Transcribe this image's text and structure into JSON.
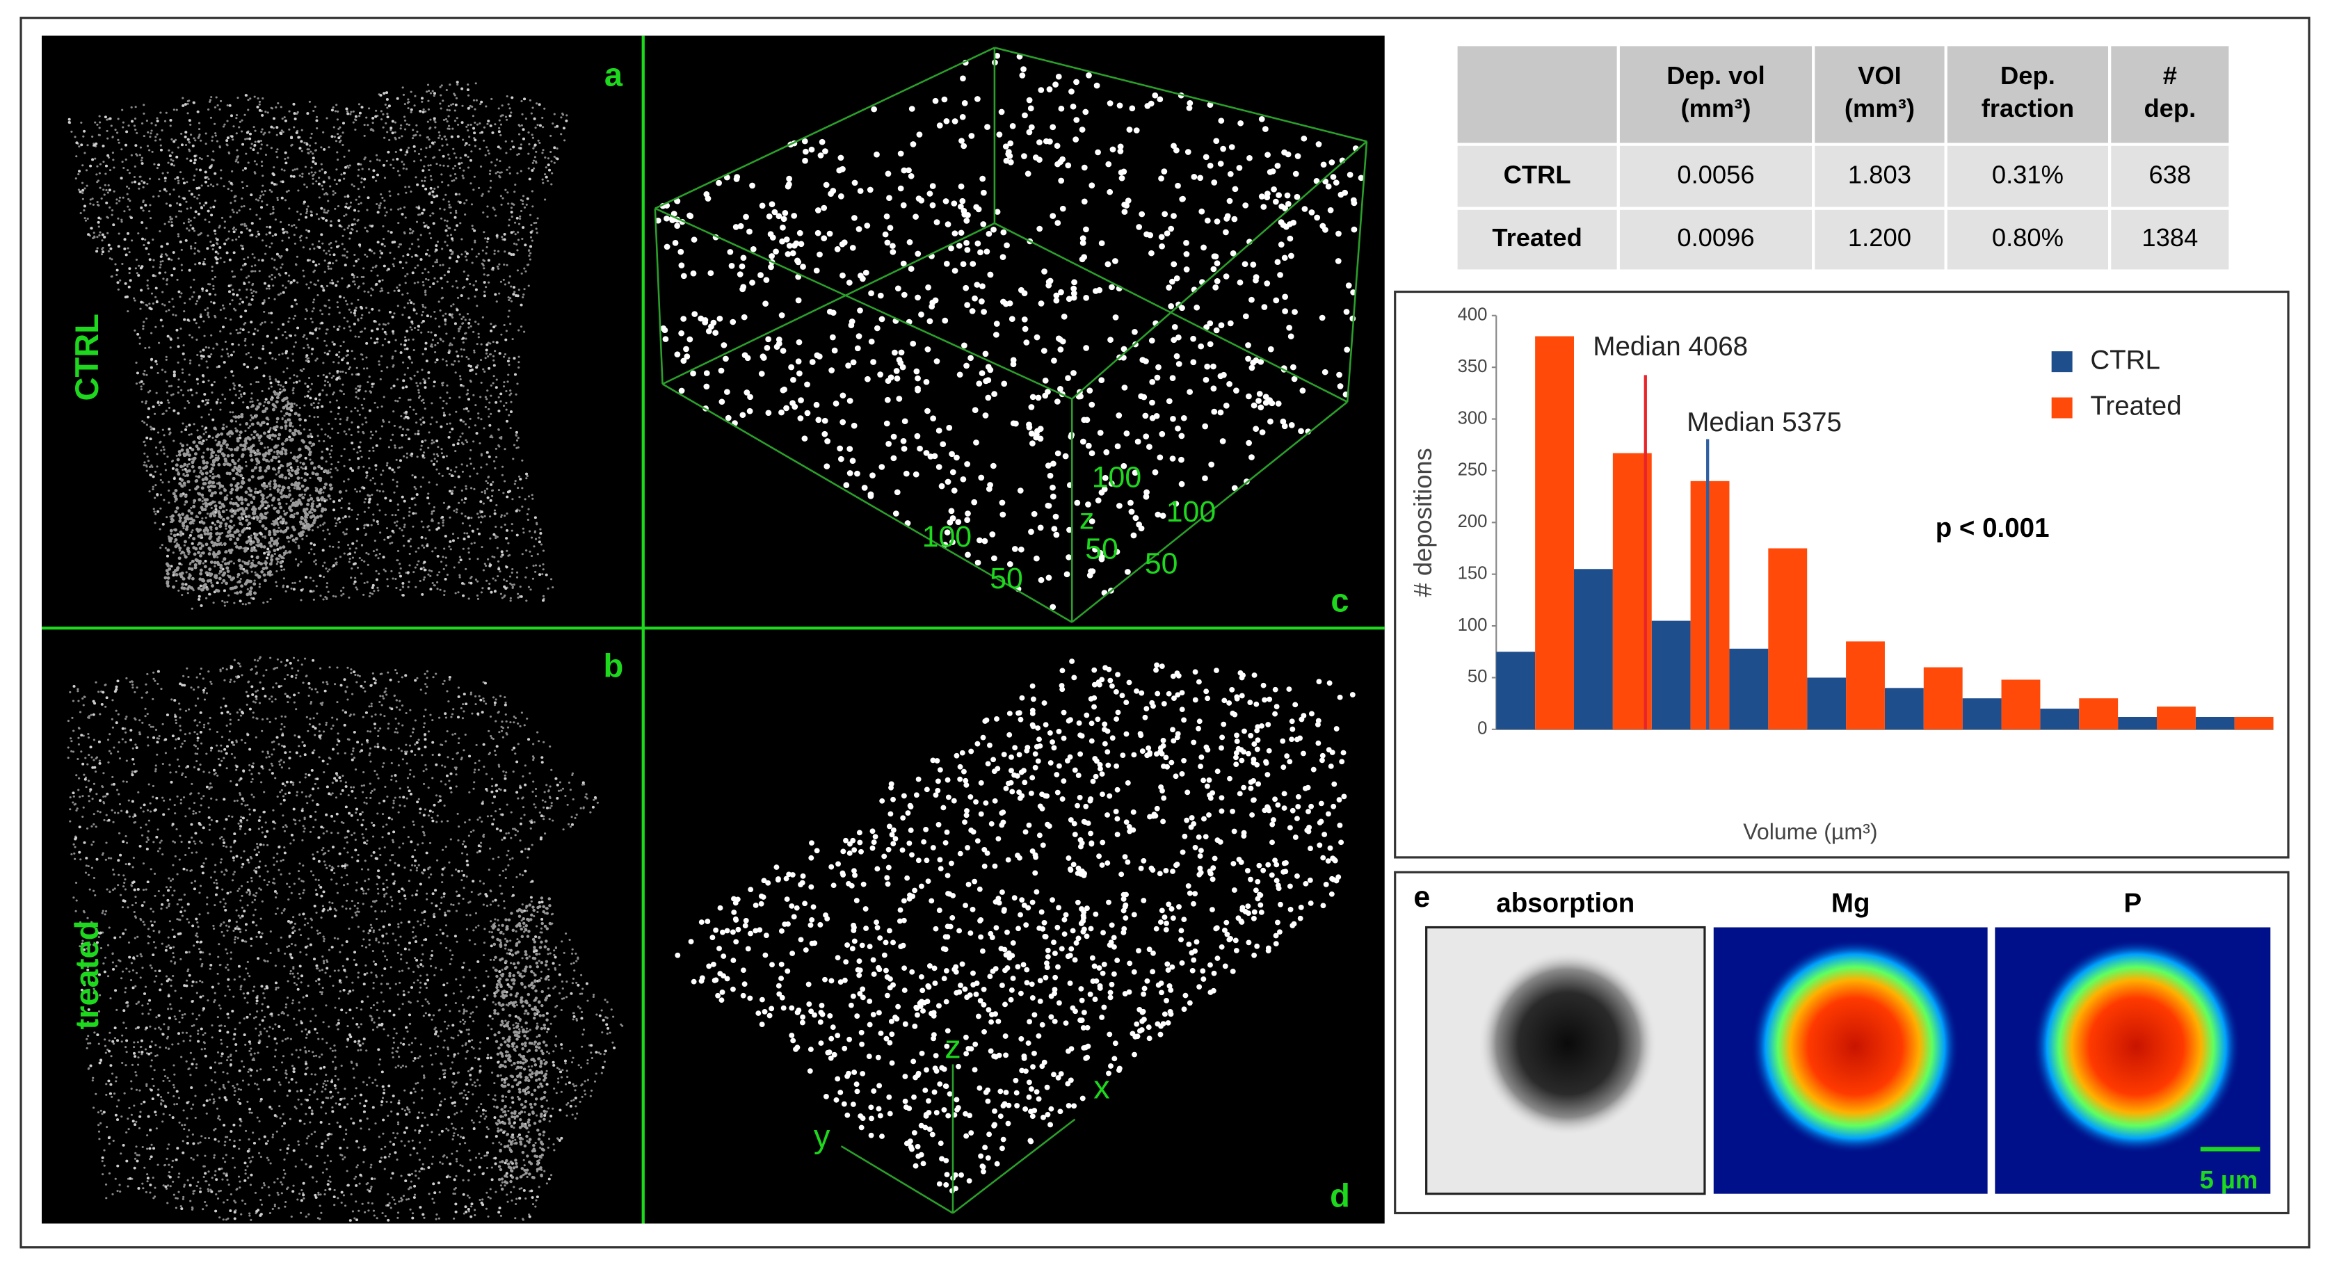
{
  "panels": {
    "a": {
      "label": "a",
      "group": "CTRL"
    },
    "b": {
      "label": "b",
      "group": "treated"
    },
    "c": {
      "label": "c",
      "axis_labels": [
        "100",
        "50",
        "100",
        "50",
        "100",
        "50",
        "z"
      ]
    },
    "d": {
      "label": "d",
      "axis_labels": [
        "z",
        "x",
        "y"
      ]
    },
    "e": {
      "label": "e",
      "maps": [
        "absorption",
        "Mg",
        "P"
      ],
      "scale_bar": "5 µm"
    }
  },
  "table": {
    "header": [
      [
        "Dep. vol",
        "(mm³)"
      ],
      [
        "VOI",
        "(mm³)"
      ],
      [
        "Dep.",
        "fraction"
      ],
      [
        "#",
        "dep."
      ]
    ],
    "rows": [
      [
        "CTRL",
        "0.0056",
        "1.803",
        "0.31%",
        "638"
      ],
      [
        "Treated",
        "0.0096",
        "1.200",
        "0.80%",
        "1384"
      ]
    ]
  },
  "chart_data": {
    "type": "bar",
    "x_label": "Volume (µm³)",
    "y_label": "# depositions",
    "categories": [
      null,
      null,
      null,
      null,
      null,
      null,
      null,
      null,
      null,
      null
    ],
    "series": [
      {
        "name": "CTRL",
        "color": "#1f4e8c",
        "values": [
          75,
          155,
          105,
          78,
          50,
          40,
          30,
          20,
          12,
          12
        ]
      },
      {
        "name": "Treated",
        "color": "#ff4a0a",
        "values": [
          380,
          267,
          240,
          175,
          85,
          60,
          48,
          30,
          22,
          12
        ]
      }
    ],
    "ylim": [
      0,
      400
    ],
    "yticks": [
      0,
      50,
      100,
      150,
      200,
      250,
      300,
      350,
      400
    ],
    "legend": "upper right",
    "annotations": [
      {
        "text": "Median 4068",
        "color": "#e8242a"
      },
      {
        "text": "Median 5375",
        "color": "#2e5fa0"
      },
      {
        "text": "p < 0.001"
      }
    ]
  }
}
